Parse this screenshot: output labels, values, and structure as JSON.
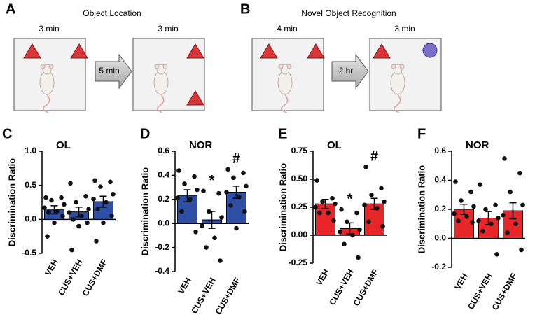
{
  "diagram": {
    "a": {
      "letter": "A",
      "title": "Object Location",
      "left_time": "3 min",
      "delay": "5 min",
      "right_time": "3 min"
    },
    "b": {
      "letter": "B",
      "title": "Novel Object Recognition",
      "left_time": "4 min",
      "delay": "2 hr",
      "right_time": "3 min"
    }
  },
  "chart_data": [
    {
      "type": "bar",
      "panel": "C",
      "title": "OL",
      "y_label": "Discrimination Ratio",
      "color": "#2e4fa3",
      "categories": [
        "VEH",
        "CUS+VEH",
        "CUS+DMF"
      ],
      "values": [
        0.14,
        0.11,
        0.26
      ],
      "errors": [
        0.06,
        0.07,
        0.08
      ],
      "points": [
        [
          0.32,
          0.32,
          0.28,
          0.22,
          0.17,
          0.12,
          0.1,
          0.05,
          -0.05,
          -0.25
        ],
        [
          0.53,
          0.34,
          0.25,
          0.15,
          0.1,
          0.05,
          0.0,
          -0.05,
          -0.1,
          -0.45
        ],
        [
          0.57,
          0.55,
          0.48,
          0.37,
          0.3,
          0.25,
          0.15,
          0.05,
          -0.05,
          -0.32
        ]
      ],
      "annotations": [
        null,
        null,
        null
      ],
      "ylim": [
        -0.5,
        1.0
      ],
      "yticks": [
        -0.5,
        {
          "value": 0,
          "label": "0.0"
        },
        0.5,
        {
          "value": 1.0,
          "label": "1.0"
        }
      ]
    },
    {
      "type": "bar",
      "panel": "D",
      "title": "NOR",
      "y_label": "Discrimination Ratio",
      "color": "#2e4fa3",
      "categories": [
        "VEH",
        "CUS+VEH",
        "CUS+DMF"
      ],
      "values": [
        0.23,
        0.03,
        0.26
      ],
      "errors": [
        0.05,
        0.07,
        0.05
      ],
      "points": [
        [
          0.44,
          0.39,
          0.33,
          0.28,
          0.21,
          0.2,
          0.1,
          -0.07
        ],
        [
          0.27,
          0.25,
          0.1,
          0.05,
          -0.02,
          -0.12,
          -0.2,
          -0.31
        ],
        [
          0.45,
          0.42,
          0.38,
          0.31,
          0.26,
          0.22,
          0.15,
          0.1,
          -0.04
        ]
      ],
      "annotations": [
        null,
        "*",
        "#"
      ],
      "ylim": [
        -0.4,
        0.6
      ],
      "yticks": [
        -0.4,
        -0.2,
        {
          "value": 0,
          "label": "0.0"
        },
        0.2,
        0.4,
        0.6
      ]
    },
    {
      "type": "bar",
      "panel": "E",
      "title": "OL",
      "y_label": "Discrimination Ratio",
      "color": "#e8262a",
      "categories": [
        "VEH",
        "CUS+VEH",
        "CUS+DMF"
      ],
      "values": [
        0.28,
        0.06,
        0.28
      ],
      "errors": [
        0.04,
        0.05,
        0.05
      ],
      "points": [
        [
          0.49,
          0.33,
          0.3,
          0.28,
          0.25,
          0.2,
          0.2,
          0.13
        ],
        [
          0.23,
          0.2,
          0.12,
          0.05,
          0.03,
          0.0,
          -0.08,
          -0.2
        ],
        [
          0.61,
          0.42,
          0.36,
          0.3,
          0.27,
          0.24,
          0.12,
          0.08
        ]
      ],
      "annotations": [
        null,
        "*",
        "#"
      ],
      "ylim": [
        -0.25,
        0.75
      ],
      "yticks": [
        -0.25,
        {
          "value": 0,
          "label": "0.00"
        },
        0.25,
        {
          "value": 0.5,
          "label": "0.50"
        },
        0.75
      ]
    },
    {
      "type": "bar",
      "panel": "F",
      "title": "NOR",
      "y_label": "Discrimination Ratio",
      "color": "#e8262a",
      "categories": [
        "VEH",
        "CUS+VEH",
        "CUS+DMF"
      ],
      "values": [
        0.2,
        0.14,
        0.19
      ],
      "errors": [
        0.035,
        0.045,
        0.055
      ],
      "points": [
        [
          0.39,
          0.32,
          0.26,
          0.22,
          0.17,
          0.15,
          0.12,
          0.11
        ],
        [
          0.37,
          0.23,
          0.2,
          0.14,
          0.12,
          0.1,
          0.05,
          -0.11
        ],
        [
          0.55,
          0.45,
          0.32,
          0.23,
          0.16,
          0.1,
          0.04,
          -0.08
        ]
      ],
      "annotations": [
        null,
        null,
        null
      ],
      "ylim": [
        -0.2,
        0.6
      ],
      "yticks": [
        -0.2,
        {
          "value": 0,
          "label": "0.0"
        },
        0.2,
        0.4,
        0.6
      ]
    }
  ]
}
